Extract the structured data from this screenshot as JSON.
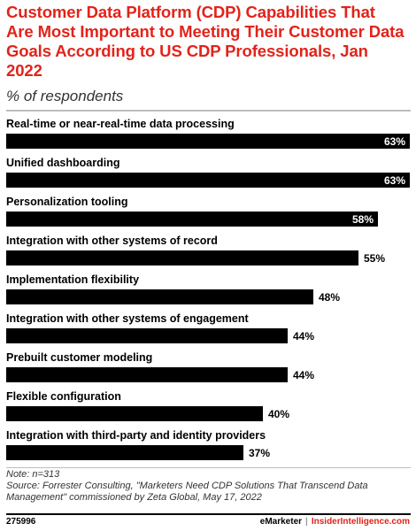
{
  "header": {
    "title": "Customer Data Platform (CDP) Capabilities That Are Most Important to Meeting Their Customer Data Goals According to US CDP Professionals, Jan 2022",
    "subtitle": "% of respondents"
  },
  "colors": {
    "title": "#e2231a",
    "bar": "#000000",
    "value_inside": "#ffffff",
    "value_outside": "#000000",
    "brand_accent": "#e2231a"
  },
  "chart_data": {
    "type": "bar",
    "orientation": "horizontal",
    "categories": [
      "Real-time or near-real-time data processing",
      "Unified dashboarding",
      "Personalization tooling",
      "Integration with other systems of record",
      "Implementation flexibility",
      "Integration with other systems of engagement",
      "Prebuilt customer modeling",
      "Flexible configuration",
      "Integration with third-party and identity providers"
    ],
    "values": [
      63,
      63,
      58,
      55,
      48,
      44,
      44,
      40,
      37
    ],
    "value_labels": [
      "63%",
      "63%",
      "58%",
      "55%",
      "48%",
      "44%",
      "44%",
      "40%",
      "37%"
    ],
    "xlim": [
      0,
      63
    ],
    "grid": false,
    "legend": "none"
  },
  "footer": {
    "note": "Note: n=313",
    "source": "Source: Forrester Consulting, \"Marketers Need CDP Solutions That Transcend Data Management\" commissioned by Zeta Global, May 17, 2022",
    "chart_id": "275996",
    "brand_primary": "eMarketer",
    "brand_separator": "|",
    "brand_secondary": "InsiderIntelligence.com"
  }
}
